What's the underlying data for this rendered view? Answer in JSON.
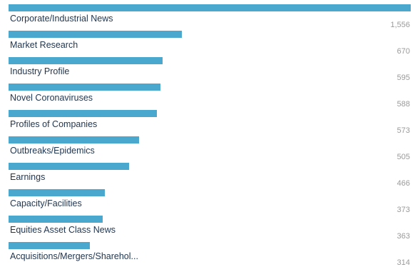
{
  "chart_data": {
    "type": "bar",
    "orientation": "horizontal",
    "categories": [
      "Corporate/Industrial News",
      "Market Research",
      "Industry Profile",
      "Novel Coronaviruses",
      "Profiles of Companies",
      "Outbreaks/Epidemics",
      "Earnings",
      "Capacity/Facilities",
      "Equities Asset Class News",
      "Acquisitions/Mergers/Sharehol..."
    ],
    "value_labels": [
      "1,556",
      "670",
      "595",
      "588",
      "573",
      "505",
      "466",
      "373",
      "363",
      "314"
    ],
    "values": [
      1556,
      670,
      595,
      588,
      573,
      505,
      466,
      373,
      363,
      314
    ],
    "bar_color": "#4aa8cf"
  }
}
